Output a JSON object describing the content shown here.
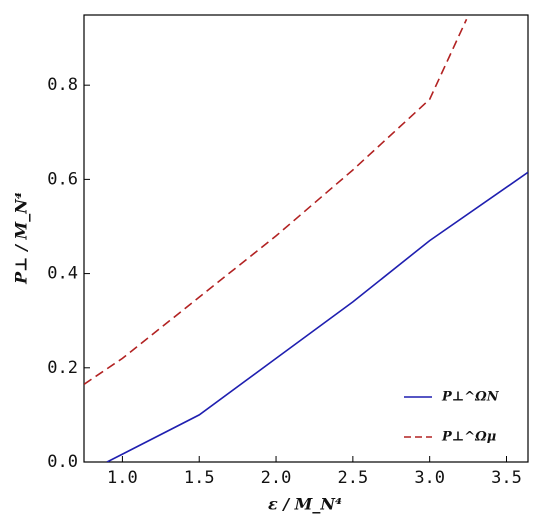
{
  "chart_data": {
    "type": "line",
    "x_label": "ε / M_N⁴",
    "y_label": "P⊥ / M_N⁴",
    "xlim": [
      0.75,
      3.64
    ],
    "ylim": [
      0,
      0.949
    ],
    "xticks": [
      {
        "value": 1,
        "label": "1.0"
      },
      1.5,
      {
        "value": 2,
        "label": "2.0"
      },
      2.5,
      {
        "value": 3,
        "label": "3.0"
      },
      3.5
    ],
    "yticks": [
      {
        "value": 0,
        "label": "0.0"
      },
      0.2,
      0.4,
      0.6,
      0.8
    ],
    "legend": "lower right",
    "series": [
      {
        "name": "P⊥^ΩN",
        "color": "#1f1fb0",
        "dash": false,
        "x": [
          0.9,
          1.5,
          2.0,
          2.5,
          3.0,
          3.64
        ],
        "values": [
          0,
          0.1,
          0.22,
          0.34,
          0.47,
          0.615
        ]
      },
      {
        "name": "P⊥^Ωμ",
        "color": "#b22222",
        "dash": true,
        "x": [
          0.75,
          1.0,
          1.5,
          2.0,
          2.5,
          3.0,
          3.24
        ],
        "values": [
          0.165,
          0.22,
          0.35,
          0.48,
          0.62,
          0.77,
          0.94
        ]
      }
    ]
  }
}
